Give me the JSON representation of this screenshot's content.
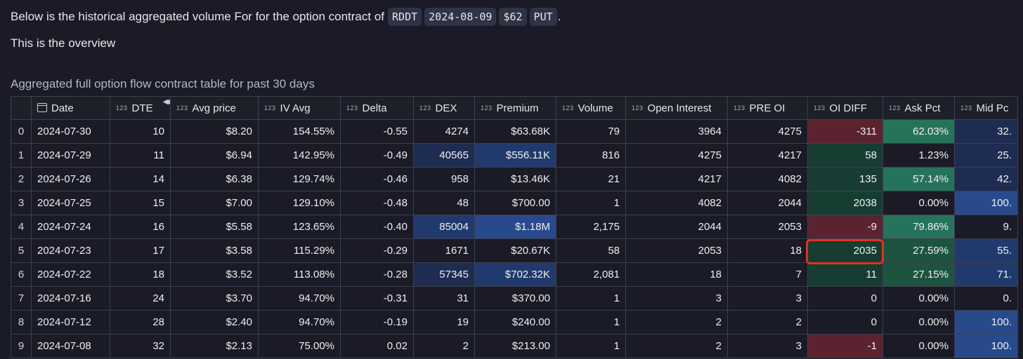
{
  "intro": {
    "text": "Below is the historical aggregated volume For for the option contract of",
    "ticker": "RDDT",
    "expiry": "2024-08-09",
    "strike": "$62",
    "type": "PUT",
    "period": "."
  },
  "overview": "This is the overview",
  "table": {
    "title": "Aggregated full option flow contract table for past 30 days",
    "type_badge": "123",
    "columns": [
      "Date",
      "DTE",
      "Avg price",
      "IV Avg",
      "Delta",
      "DEX",
      "Premium",
      "Volume",
      "Open Interest",
      "PRE OI",
      "OI DIFF",
      "Ask Pct",
      "Mid Pc"
    ],
    "rows": [
      [
        "0",
        "2024-07-30",
        "10",
        "$8.20",
        "154.55%",
        "-0.55",
        "4274",
        "$63.68K",
        "79",
        "3964",
        "4275",
        "-311",
        "62.03%",
        "32."
      ],
      [
        "1",
        "2024-07-29",
        "11",
        "$6.94",
        "142.95%",
        "-0.49",
        "40565",
        "$556.11K",
        "816",
        "4275",
        "4217",
        "58",
        "1.23%",
        "25."
      ],
      [
        "2",
        "2024-07-26",
        "14",
        "$6.38",
        "129.74%",
        "-0.46",
        "958",
        "$13.46K",
        "21",
        "4217",
        "4082",
        "135",
        "57.14%",
        "42."
      ],
      [
        "3",
        "2024-07-25",
        "15",
        "$7.00",
        "129.10%",
        "-0.48",
        "48",
        "$700.00",
        "1",
        "4082",
        "2044",
        "2038",
        "0.00%",
        "100."
      ],
      [
        "4",
        "2024-07-24",
        "16",
        "$5.58",
        "123.65%",
        "-0.40",
        "85004",
        "$1.18M",
        "2,175",
        "2044",
        "2053",
        "-9",
        "79.86%",
        "9."
      ],
      [
        "5",
        "2024-07-23",
        "17",
        "$3.58",
        "115.29%",
        "-0.29",
        "1671",
        "$20.67K",
        "58",
        "2053",
        "18",
        "2035",
        "27.59%",
        "55."
      ],
      [
        "6",
        "2024-07-22",
        "18",
        "$3.52",
        "113.08%",
        "-0.28",
        "57345",
        "$702.32K",
        "2,081",
        "18",
        "7",
        "11",
        "27.15%",
        "71."
      ],
      [
        "7",
        "2024-07-16",
        "24",
        "$3.70",
        "94.70%",
        "-0.31",
        "31",
        "$370.00",
        "1",
        "3",
        "3",
        "0",
        "0.00%",
        "0."
      ],
      [
        "8",
        "2024-07-12",
        "28",
        "$2.40",
        "94.70%",
        "-0.19",
        "19",
        "$240.00",
        "1",
        "2",
        "2",
        "0",
        "0.00%",
        "100."
      ],
      [
        "9",
        "2024-07-08",
        "32",
        "$2.13",
        "75.00%",
        "0.02",
        "2",
        "$213.00",
        "1",
        "2",
        "3",
        "-1",
        "0.00%",
        "100."
      ]
    ]
  },
  "colors": {
    "background": "#1a1b26",
    "positive": "#25735a",
    "negative": "#5a232f",
    "blue": "#284a8c",
    "highlight_border": "#e0341c"
  }
}
